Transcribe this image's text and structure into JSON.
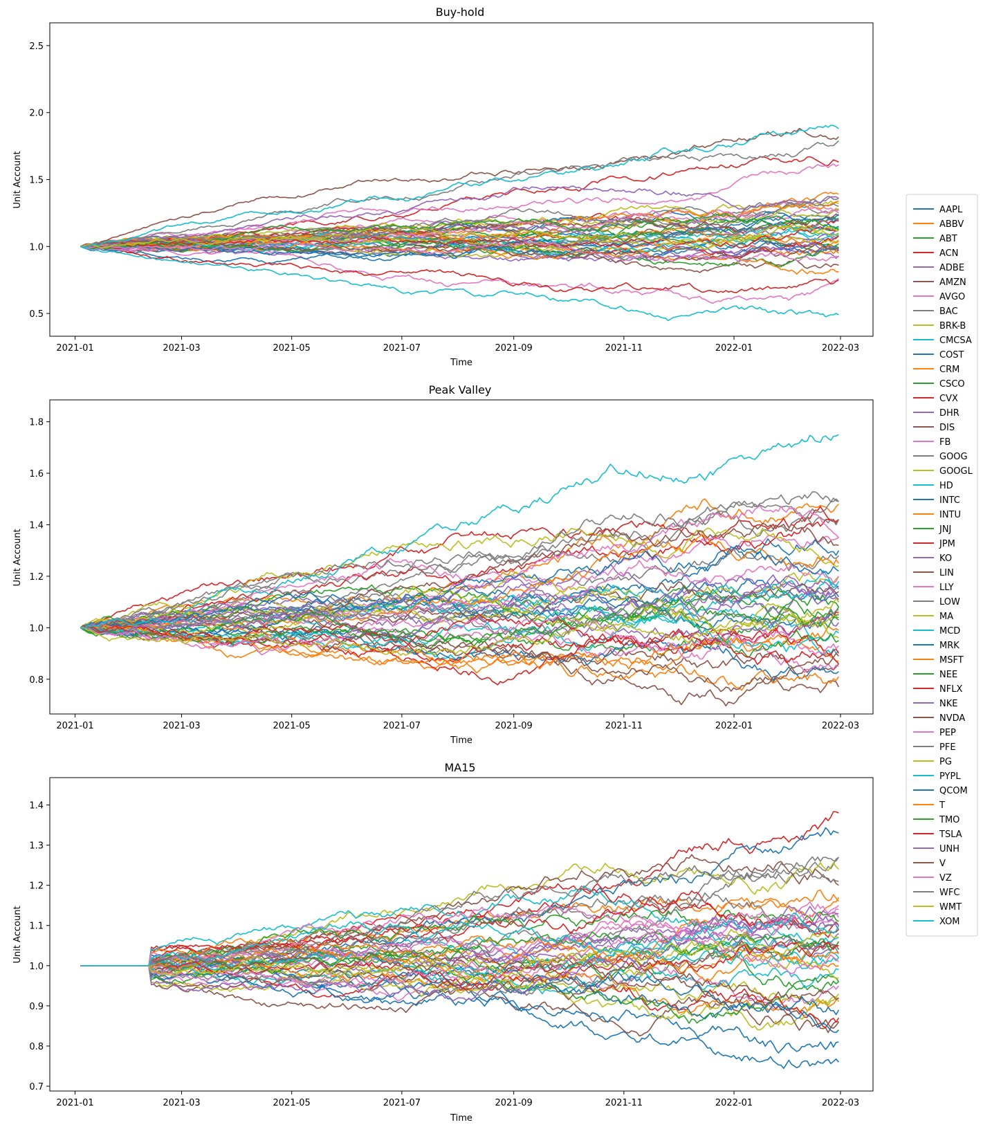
{
  "figure": {
    "legend_placement": "right"
  },
  "legend": {
    "entries": [
      "AAPL",
      "ABBV",
      "ABT",
      "ACN",
      "ADBE",
      "AMZN",
      "AVGO",
      "BAC",
      "BRK-B",
      "CMCSA",
      "COST",
      "CRM",
      "CSCO",
      "CVX",
      "DHR",
      "DIS",
      "FB",
      "GOOG",
      "GOOGL",
      "HD",
      "INTC",
      "INTU",
      "JNJ",
      "JPM",
      "KO",
      "LIN",
      "LLY",
      "LOW",
      "MA",
      "MCD",
      "MRK",
      "MSFT",
      "NEE",
      "NFLX",
      "NKE",
      "NVDA",
      "PEP",
      "PFE",
      "PG",
      "PYPL",
      "QCOM",
      "T",
      "TMO",
      "TSLA",
      "UNH",
      "V",
      "VZ",
      "WFC",
      "WMT",
      "XOM"
    ],
    "colors": [
      "#1f77b4",
      "#ff7f0e",
      "#2ca02c",
      "#d62728",
      "#9467bd",
      "#8c564b",
      "#e377c2",
      "#7f7f7f",
      "#bcbd22",
      "#17becf"
    ]
  },
  "chart_data": [
    {
      "type": "line",
      "title": "Buy-hold",
      "xlabel": "Time",
      "ylabel": "Unit Account",
      "x_ticks": [
        "2021-01",
        "2021-03",
        "2021-05",
        "2021-07",
        "2021-09",
        "2021-11",
        "2022-01",
        "2022-03"
      ],
      "y_ticks": [
        "0.5",
        "1.0",
        "1.5",
        "2.0",
        "2.5"
      ],
      "xlim": [
        "2020-12-18",
        "2022-03-19"
      ],
      "ylim": [
        0.33,
        2.67
      ],
      "x_range": [
        "2021-01-04",
        "2022-02-28"
      ],
      "grid": false,
      "series_final": [
        {
          "name": "AAPL",
          "final": 1.15
        },
        {
          "name": "ABBV",
          "final": 1.39
        },
        {
          "name": "ABT",
          "final": 1.02
        },
        {
          "name": "ACN",
          "final": 1.19
        },
        {
          "name": "ADBE",
          "final": 0.93
        },
        {
          "name": "AMZN",
          "final": 0.97
        },
        {
          "name": "AVGO",
          "final": 1.25
        },
        {
          "name": "BAC",
          "final": 1.36
        },
        {
          "name": "BRK-B",
          "final": 1.32
        },
        {
          "name": "CMCSA",
          "final": 1.08
        },
        {
          "name": "COST",
          "final": 1.2
        },
        {
          "name": "CRM",
          "final": 0.95
        },
        {
          "name": "CSCO",
          "final": 1.21
        },
        {
          "name": "CVX",
          "final": 1.63
        },
        {
          "name": "DHR",
          "final": 1.08
        },
        {
          "name": "DIS",
          "final": 0.86
        },
        {
          "name": "FB",
          "final": 0.76
        },
        {
          "name": "GOOG",
          "final": 1.28
        },
        {
          "name": "GOOGL",
          "final": 1.27
        },
        {
          "name": "HD",
          "final": 1.09
        },
        {
          "name": "INTC",
          "final": 0.98
        },
        {
          "name": "INTU",
          "final": 1.04
        },
        {
          "name": "JNJ",
          "final": 1.13
        },
        {
          "name": "JPM",
          "final": 1.08
        },
        {
          "name": "KO",
          "final": 1.12
        },
        {
          "name": "LIN",
          "final": 1.23
        },
        {
          "name": "LLY",
          "final": 1.61
        },
        {
          "name": "LOW",
          "final": 1.3
        },
        {
          "name": "MA",
          "final": 1.05
        },
        {
          "name": "MCD",
          "final": 1.14
        },
        {
          "name": "MRK",
          "final": 0.97
        },
        {
          "name": "MSFT",
          "final": 1.34
        },
        {
          "name": "NEE",
          "final": 0.99
        },
        {
          "name": "NFLX",
          "final": 0.75
        },
        {
          "name": "NKE",
          "final": 0.98
        },
        {
          "name": "NVDA",
          "final": 1.82
        },
        {
          "name": "PEP",
          "final": 1.27
        },
        {
          "name": "PFE",
          "final": 1.19
        },
        {
          "name": "PG",
          "final": 1.1
        },
        {
          "name": "PYPL",
          "final": 0.49
        },
        {
          "name": "QCOM",
          "final": 1.24
        },
        {
          "name": "T",
          "final": 0.81
        },
        {
          "name": "TMO",
          "final": 1.12
        },
        {
          "name": "TSLA",
          "final": 1.12
        },
        {
          "name": "UNH",
          "final": 1.36
        },
        {
          "name": "V",
          "final": 0.99
        },
        {
          "name": "VZ",
          "final": 0.92
        },
        {
          "name": "WFC",
          "final": 1.79
        },
        {
          "name": "WMT",
          "final": 1.12
        },
        {
          "name": "XOM",
          "final": 1.88
        }
      ]
    },
    {
      "type": "line",
      "title": "Peak Valley",
      "xlabel": "Time",
      "ylabel": "Unit Account",
      "x_ticks": [
        "2021-01",
        "2021-03",
        "2021-05",
        "2021-07",
        "2021-09",
        "2021-11",
        "2022-01",
        "2022-03"
      ],
      "y_ticks": [
        "0.8",
        "1.0",
        "1.2",
        "1.4",
        "1.6",
        "1.8"
      ],
      "xlim": [
        "2020-12-18",
        "2022-03-19"
      ],
      "ylim": [
        0.665,
        1.885
      ],
      "x_range": [
        "2021-01-04",
        "2022-02-28"
      ],
      "grid": false,
      "series_final": [
        {
          "name": "AAPL",
          "final": 1.12
        },
        {
          "name": "ABBV",
          "final": 1.48
        },
        {
          "name": "ABT",
          "final": 1.03
        },
        {
          "name": "ACN",
          "final": 1.42
        },
        {
          "name": "ADBE",
          "final": 1.16
        },
        {
          "name": "AMZN",
          "final": 0.77
        },
        {
          "name": "AVGO",
          "final": 1.35
        },
        {
          "name": "BAC",
          "final": 1.49
        },
        {
          "name": "BRK-B",
          "final": 1.2
        },
        {
          "name": "CMCSA",
          "final": 0.98
        },
        {
          "name": "COST",
          "final": 1.3
        },
        {
          "name": "CRM",
          "final": 0.87
        },
        {
          "name": "CSCO",
          "final": 1.08
        },
        {
          "name": "CVX",
          "final": 1.42
        },
        {
          "name": "DHR",
          "final": 1.11
        },
        {
          "name": "DIS",
          "final": 0.86
        },
        {
          "name": "FB",
          "final": 0.85
        },
        {
          "name": "GOOG",
          "final": 1.42
        },
        {
          "name": "GOOGL",
          "final": 1.24
        },
        {
          "name": "HD",
          "final": 1.15
        },
        {
          "name": "INTC",
          "final": 0.83
        },
        {
          "name": "INTU",
          "final": 0.99
        },
        {
          "name": "JNJ",
          "final": 1.08
        },
        {
          "name": "JPM",
          "final": 1.06
        },
        {
          "name": "KO",
          "final": 1.1
        },
        {
          "name": "LIN",
          "final": 1.14
        },
        {
          "name": "LLY",
          "final": 1.35
        },
        {
          "name": "LOW",
          "final": 1.28
        },
        {
          "name": "MA",
          "final": 0.96
        },
        {
          "name": "MCD",
          "final": 1.18
        },
        {
          "name": "MRK",
          "final": 1.05
        },
        {
          "name": "MSFT",
          "final": 1.25
        },
        {
          "name": "NEE",
          "final": 0.95
        },
        {
          "name": "NFLX",
          "final": 0.86
        },
        {
          "name": "NKE",
          "final": 1.02
        },
        {
          "name": "NVDA",
          "final": 1.32
        },
        {
          "name": "PEP",
          "final": 1.2
        },
        {
          "name": "PFE",
          "final": 1.07
        },
        {
          "name": "PG",
          "final": 1.1
        },
        {
          "name": "PYPL",
          "final": 0.91
        },
        {
          "name": "QCOM",
          "final": 1.22
        },
        {
          "name": "T",
          "final": 0.81
        },
        {
          "name": "TMO",
          "final": 1.04
        },
        {
          "name": "TSLA",
          "final": 0.9
        },
        {
          "name": "UNH",
          "final": 1.16
        },
        {
          "name": "V",
          "final": 0.89
        },
        {
          "name": "VZ",
          "final": 0.93
        },
        {
          "name": "WFC",
          "final": 1.49
        },
        {
          "name": "WMT",
          "final": 1.06
        },
        {
          "name": "XOM",
          "final": 1.75
        }
      ]
    },
    {
      "type": "line",
      "title": "MA15",
      "xlabel": "Time",
      "ylabel": "Unit Account",
      "x_ticks": [
        "2021-01",
        "2021-03",
        "2021-05",
        "2021-07",
        "2021-09",
        "2021-11",
        "2022-01",
        "2022-03"
      ],
      "y_ticks": [
        "0.7",
        "0.8",
        "0.9",
        "1.0",
        "1.1",
        "1.2",
        "1.3",
        "1.4"
      ],
      "xlim": [
        "2020-12-18",
        "2022-03-19"
      ],
      "ylim": [
        0.688,
        1.468
      ],
      "x_range": [
        "2021-01-04",
        "2022-02-28"
      ],
      "grid": false,
      "series_final": [
        {
          "name": "AAPL",
          "final": 0.81
        },
        {
          "name": "ABBV",
          "final": 1.16
        },
        {
          "name": "ABT",
          "final": 0.96
        },
        {
          "name": "ACN",
          "final": 1.38
        },
        {
          "name": "ADBE",
          "final": 1.06
        },
        {
          "name": "AMZN",
          "final": 0.86
        },
        {
          "name": "AVGO",
          "final": 1.12
        },
        {
          "name": "BAC",
          "final": 1.27
        },
        {
          "name": "BRK-B",
          "final": 1.24
        },
        {
          "name": "CMCSA",
          "final": 1.02
        },
        {
          "name": "COST",
          "final": 1.33
        },
        {
          "name": "CRM",
          "final": 1.17
        },
        {
          "name": "CSCO",
          "final": 1.05
        },
        {
          "name": "CVX",
          "final": 1.1
        },
        {
          "name": "DHR",
          "final": 1.08
        },
        {
          "name": "DIS",
          "final": 1.2
        },
        {
          "name": "FB",
          "final": 0.95
        },
        {
          "name": "GOOG",
          "final": 1.21
        },
        {
          "name": "GOOGL",
          "final": 0.91
        },
        {
          "name": "HD",
          "final": 1.07
        },
        {
          "name": "INTC",
          "final": 0.76
        },
        {
          "name": "INTU",
          "final": 0.92
        },
        {
          "name": "JNJ",
          "final": 1.11
        },
        {
          "name": "JPM",
          "final": 0.87
        },
        {
          "name": "KO",
          "final": 1.13
        },
        {
          "name": "LIN",
          "final": 1.04
        },
        {
          "name": "LLY",
          "final": 1.15
        },
        {
          "name": "LOW",
          "final": 1.1
        },
        {
          "name": "MA",
          "final": 0.93
        },
        {
          "name": "MCD",
          "final": 0.99
        },
        {
          "name": "MRK",
          "final": 0.89
        },
        {
          "name": "MSFT",
          "final": 1.0
        },
        {
          "name": "NEE",
          "final": 0.96
        },
        {
          "name": "NFLX",
          "final": 1.09
        },
        {
          "name": "NKE",
          "final": 1.1
        },
        {
          "name": "NVDA",
          "final": 0.86
        },
        {
          "name": "PEP",
          "final": 1.14
        },
        {
          "name": "PFE",
          "final": 1.03
        },
        {
          "name": "PG",
          "final": 0.97
        },
        {
          "name": "PYPL",
          "final": 1.02
        },
        {
          "name": "QCOM",
          "final": 0.84
        },
        {
          "name": "T",
          "final": 1.03
        },
        {
          "name": "TMO",
          "final": 1.06
        },
        {
          "name": "TSLA",
          "final": 1.05
        },
        {
          "name": "UNH",
          "final": 1.09
        },
        {
          "name": "V",
          "final": 0.92
        },
        {
          "name": "VZ",
          "final": 1.01
        },
        {
          "name": "WFC",
          "final": 1.27
        },
        {
          "name": "WMT",
          "final": 1.07
        },
        {
          "name": "XOM",
          "final": 1.1
        }
      ]
    }
  ]
}
